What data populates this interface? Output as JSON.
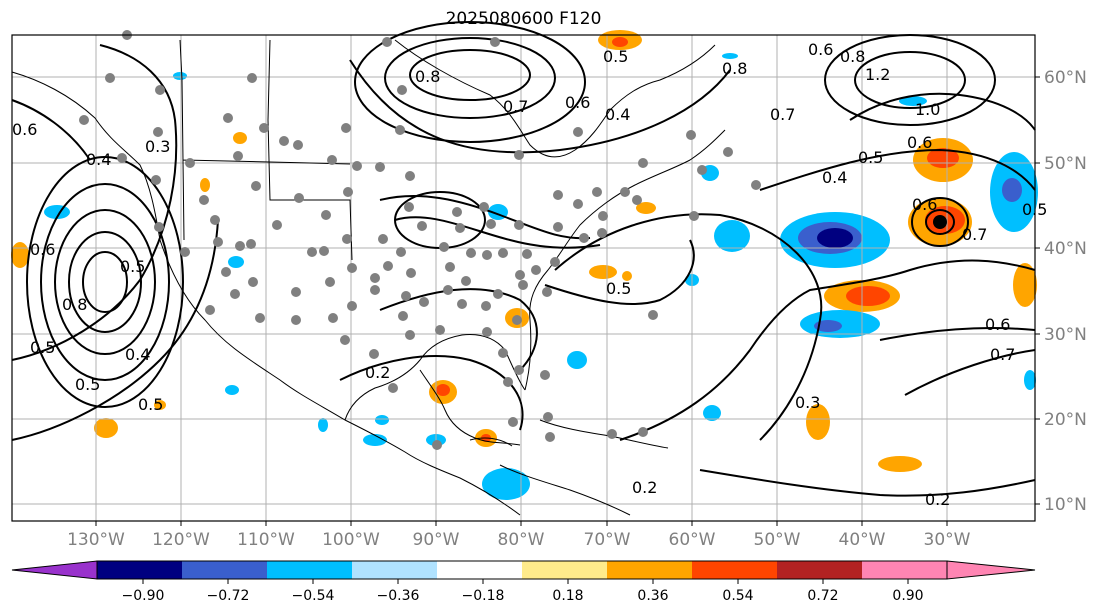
{
  "title": "2025080600 F120",
  "map": {
    "lon_ticks": [
      "130°W",
      "120°W",
      "110°W",
      "100°W",
      "90°W",
      "80°W",
      "70°W",
      "60°W",
      "50°W",
      "40°W",
      "30°W"
    ],
    "lat_ticks": [
      "60°N",
      "50°N",
      "40°N",
      "30°N",
      "20°N",
      "10°N"
    ],
    "contour_labels": [
      "0.8",
      "0.7",
      "0.6",
      "0.4",
      "0.5",
      "0.6",
      "0.8",
      "1.2",
      "1.0",
      "0.6",
      "0.5",
      "0.4",
      "0.6",
      "0.7",
      "0.5",
      "0.6",
      "0.7",
      "0.8",
      "0.7",
      "0.2",
      "0.2",
      "0.3",
      "0.5",
      "0.4",
      "0.5",
      "0.5",
      "0.6",
      "0.8",
      "0.5",
      "0.3",
      "0.4",
      "0.6",
      "0.5",
      "0.2"
    ],
    "colors": {
      "contour": "#000000",
      "station_dot": "#808080",
      "grid": "#b0b0b0",
      "land_outline": "#000000"
    }
  },
  "colorbar": {
    "ticks": [
      "−0.90",
      "−0.72",
      "−0.54",
      "−0.36",
      "−0.18",
      "0.18",
      "0.36",
      "0.54",
      "0.72",
      "0.90"
    ],
    "colors": [
      "#9932cc",
      "#000080",
      "#3a5fcd",
      "#00bfff",
      "#b0e2ff",
      "#ffffff",
      "#ffeb8b",
      "#ffa500",
      "#ff4500",
      "#b22222",
      "#ff85b3"
    ]
  }
}
